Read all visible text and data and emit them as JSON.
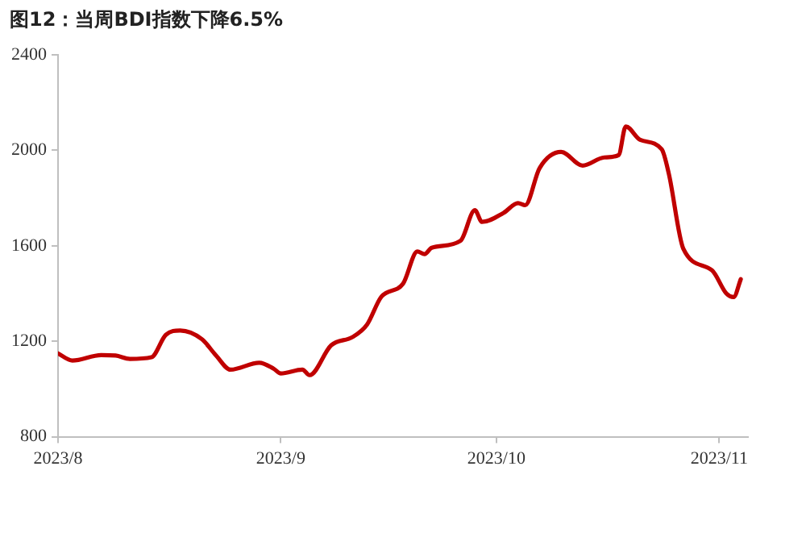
{
  "chart_data": {
    "type": "line",
    "title": "图12：当周BDI指数下降6.5%",
    "x": [
      "2023-08-01",
      "2023-08-03",
      "2023-08-07",
      "2023-08-09",
      "2023-08-11",
      "2023-08-14",
      "2023-08-16",
      "2023-08-18",
      "2023-08-21",
      "2023-08-23",
      "2023-08-25",
      "2023-08-29",
      "2023-08-31",
      "2023-09-01",
      "2023-09-04",
      "2023-09-05",
      "2023-09-08",
      "2023-09-11",
      "2023-09-13",
      "2023-09-15",
      "2023-09-18",
      "2023-09-20",
      "2023-09-21",
      "2023-09-22",
      "2023-09-26",
      "2023-09-28",
      "2023-09-29",
      "2023-10-02",
      "2023-10-04",
      "2023-10-05",
      "2023-10-07",
      "2023-10-10",
      "2023-10-13",
      "2023-10-16",
      "2023-10-18",
      "2023-10-19",
      "2023-10-21",
      "2023-10-24",
      "2023-10-25",
      "2023-10-27",
      "2023-10-31",
      "2023-11-02",
      "2023-11-03",
      "2023-11-04"
    ],
    "series": [
      {
        "color": "#c00000",
        "values": [
          1149,
          1119,
          1142,
          1140,
          1126,
          1133,
          1227,
          1245,
          1209,
          1140,
          1081,
          1110,
          1085,
          1065,
          1081,
          1058,
          1183,
          1218,
          1270,
          1387,
          1441,
          1576,
          1565,
          1592,
          1621,
          1749,
          1700,
          1738,
          1779,
          1770,
          1925,
          1993,
          1936,
          1970,
          1980,
          2100,
          2044,
          2004,
          1900,
          1588,
          1497,
          1400,
          1385,
          1460
        ]
      }
    ],
    "xlim": [
      "2023-08-01",
      "2023-11-05"
    ],
    "xticks": [
      {
        "value": "2023-08-01",
        "label": "2023/8"
      },
      {
        "value": "2023-09-01",
        "label": "2023/9"
      },
      {
        "value": "2023-10-01",
        "label": "2023/10"
      },
      {
        "value": "2023-11-01",
        "label": "2023/11"
      }
    ],
    "ylim": [
      800,
      2400
    ],
    "yticks": [
      800,
      1200,
      1600,
      2000,
      2400
    ],
    "grid": false,
    "legend": false,
    "marker": "none",
    "line_style": "solid"
  }
}
